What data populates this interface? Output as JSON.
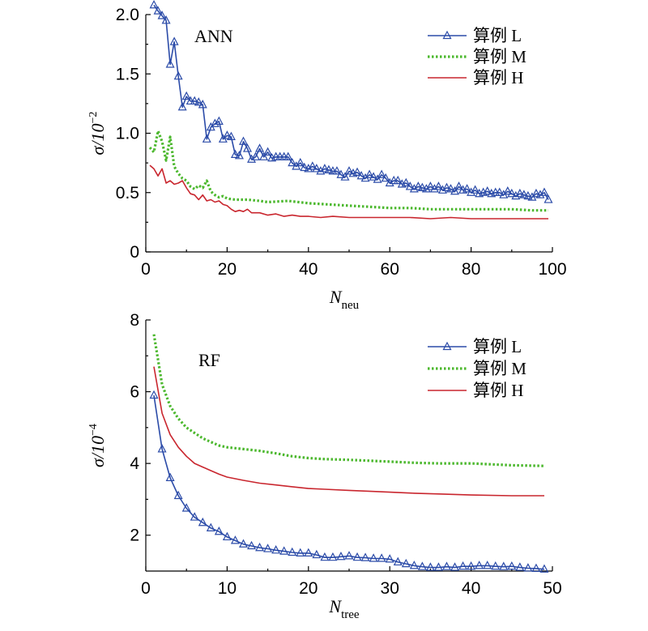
{
  "chart_data": [
    {
      "type": "line",
      "panel_label": "ANN",
      "ylabel_main": "σ/10",
      "ylabel_exp": "−2",
      "xlabel_main": "N",
      "xlabel_sub": "neu",
      "xlim": [
        0,
        100
      ],
      "ylim": [
        0,
        2.0
      ],
      "xticks": [
        "0",
        "20",
        "40",
        "60",
        "80",
        "100"
      ],
      "yticks": [
        "0",
        "0.5",
        "1.0",
        "1.5",
        "2.0"
      ],
      "legend_position": "top-right",
      "series": [
        {
          "name": "算例 L",
          "color": "#2b4ba8",
          "marker": "triangle",
          "x": [
            2,
            3,
            4,
            5,
            6,
            7,
            8,
            9,
            10,
            11,
            12,
            13,
            14,
            15,
            16,
            17,
            18,
            19,
            20,
            21,
            22,
            23,
            24,
            25,
            26,
            27,
            28,
            29,
            30,
            31,
            32,
            33,
            34,
            35,
            36,
            37,
            38,
            39,
            40,
            41,
            42,
            43,
            44,
            45,
            46,
            47,
            48,
            49,
            50,
            51,
            52,
            53,
            54,
            55,
            56,
            57,
            58,
            59,
            60,
            61,
            62,
            63,
            64,
            65,
            66,
            67,
            68,
            69,
            70,
            71,
            72,
            73,
            74,
            75,
            76,
            77,
            78,
            79,
            80,
            81,
            82,
            83,
            84,
            85,
            86,
            87,
            88,
            89,
            90,
            91,
            92,
            93,
            94,
            95,
            96,
            97,
            98,
            99
          ],
          "y": [
            2.08,
            2.03,
            1.99,
            1.95,
            1.58,
            1.77,
            1.48,
            1.22,
            1.31,
            1.27,
            1.27,
            1.26,
            1.24,
            0.95,
            1.05,
            1.08,
            1.1,
            0.95,
            0.98,
            0.97,
            0.82,
            0.81,
            0.93,
            0.87,
            0.78,
            0.8,
            0.87,
            0.8,
            0.84,
            0.79,
            0.8,
            0.8,
            0.8,
            0.8,
            0.75,
            0.72,
            0.75,
            0.71,
            0.7,
            0.72,
            0.7,
            0.68,
            0.7,
            0.69,
            0.68,
            0.68,
            0.65,
            0.63,
            0.68,
            0.66,
            0.67,
            0.64,
            0.62,
            0.65,
            0.63,
            0.61,
            0.65,
            0.62,
            0.58,
            0.6,
            0.6,
            0.57,
            0.58,
            0.55,
            0.53,
            0.55,
            0.54,
            0.53,
            0.55,
            0.53,
            0.55,
            0.52,
            0.54,
            0.53,
            0.51,
            0.55,
            0.52,
            0.53,
            0.5,
            0.52,
            0.49,
            0.5,
            0.51,
            0.49,
            0.5,
            0.5,
            0.48,
            0.51,
            0.49,
            0.47,
            0.49,
            0.48,
            0.47,
            0.46,
            0.49,
            0.48,
            0.5,
            0.44
          ]
        },
        {
          "name": "算例 M",
          "color": "#4cb82e",
          "dash": "dotted",
          "x": [
            1,
            2,
            3,
            4,
            5,
            6,
            7,
            8,
            9,
            10,
            11,
            12,
            13,
            14,
            15,
            16,
            17,
            18,
            19,
            20,
            22,
            25,
            28,
            30,
            35,
            40,
            45,
            50,
            55,
            60,
            65,
            70,
            75,
            80,
            85,
            90,
            95,
            99
          ],
          "y": [
            0.88,
            0.84,
            1.02,
            0.93,
            0.77,
            0.97,
            0.72,
            0.66,
            0.62,
            0.6,
            0.55,
            0.53,
            0.56,
            0.54,
            0.6,
            0.51,
            0.48,
            0.46,
            0.47,
            0.45,
            0.44,
            0.44,
            0.43,
            0.42,
            0.43,
            0.41,
            0.4,
            0.39,
            0.38,
            0.37,
            0.37,
            0.36,
            0.36,
            0.36,
            0.36,
            0.36,
            0.35,
            0.35
          ]
        },
        {
          "name": "算例 H",
          "color": "#c9262e",
          "dash": "solid",
          "x": [
            1,
            2,
            3,
            4,
            5,
            6,
            7,
            8,
            9,
            10,
            11,
            12,
            13,
            14,
            15,
            16,
            17,
            18,
            19,
            20,
            21,
            22,
            23,
            24,
            25,
            26,
            28,
            30,
            32,
            34,
            36,
            38,
            40,
            43,
            46,
            50,
            55,
            60,
            65,
            70,
            75,
            80,
            85,
            90,
            95,
            99
          ],
          "y": [
            0.73,
            0.7,
            0.64,
            0.7,
            0.58,
            0.6,
            0.57,
            0.58,
            0.6,
            0.54,
            0.49,
            0.48,
            0.44,
            0.48,
            0.43,
            0.44,
            0.42,
            0.43,
            0.4,
            0.39,
            0.36,
            0.34,
            0.35,
            0.34,
            0.36,
            0.33,
            0.33,
            0.31,
            0.32,
            0.3,
            0.31,
            0.3,
            0.3,
            0.29,
            0.3,
            0.29,
            0.29,
            0.29,
            0.29,
            0.28,
            0.29,
            0.28,
            0.28,
            0.28,
            0.28,
            0.28
          ]
        }
      ]
    },
    {
      "type": "line",
      "panel_label": "RF",
      "ylabel_main": "σ/10",
      "ylabel_exp": "−4",
      "xlabel_main": "N",
      "xlabel_sub": "tree",
      "xlim": [
        0,
        50
      ],
      "ylim": [
        1.0,
        8.0
      ],
      "xticks": [
        "0",
        "10",
        "20",
        "30",
        "40",
        "50"
      ],
      "yticks": [
        "2",
        "4",
        "6",
        "8"
      ],
      "legend_position": "top-right",
      "series": [
        {
          "name": "算例 L",
          "color": "#2b4ba8",
          "marker": "triangle",
          "x": [
            1,
            2,
            3,
            4,
            5,
            6,
            7,
            8,
            9,
            10,
            11,
            12,
            13,
            14,
            15,
            16,
            17,
            18,
            19,
            20,
            21,
            22,
            23,
            24,
            25,
            26,
            27,
            28,
            29,
            30,
            31,
            32,
            33,
            34,
            35,
            36,
            37,
            38,
            39,
            40,
            41,
            42,
            43,
            44,
            45,
            46,
            47,
            48,
            49
          ],
          "y": [
            5.9,
            4.4,
            3.6,
            3.1,
            2.75,
            2.5,
            2.35,
            2.2,
            2.1,
            1.95,
            1.85,
            1.75,
            1.7,
            1.65,
            1.62,
            1.58,
            1.55,
            1.52,
            1.5,
            1.5,
            1.45,
            1.38,
            1.38,
            1.4,
            1.42,
            1.38,
            1.37,
            1.35,
            1.35,
            1.33,
            1.25,
            1.2,
            1.15,
            1.12,
            1.1,
            1.1,
            1.12,
            1.1,
            1.13,
            1.13,
            1.15,
            1.15,
            1.13,
            1.12,
            1.13,
            1.1,
            1.08,
            1.07,
            1.05
          ]
        },
        {
          "name": "算例 M",
          "color": "#4cb82e",
          "dash": "dotted",
          "x": [
            1,
            2,
            3,
            4,
            5,
            6,
            7,
            8,
            9,
            10,
            12,
            14,
            16,
            18,
            20,
            22,
            25,
            28,
            30,
            33,
            36,
            40,
            45,
            49
          ],
          "y": [
            7.6,
            6.2,
            5.6,
            5.25,
            5.0,
            4.85,
            4.7,
            4.6,
            4.5,
            4.45,
            4.4,
            4.35,
            4.28,
            4.2,
            4.15,
            4.12,
            4.1,
            4.07,
            4.05,
            4.02,
            4.0,
            4.0,
            3.95,
            3.93
          ]
        },
        {
          "name": "算例 H",
          "color": "#c9262e",
          "dash": "solid",
          "x": [
            1,
            2,
            3,
            4,
            5,
            6,
            7,
            8,
            9,
            10,
            12,
            14,
            16,
            18,
            20,
            22,
            25,
            28,
            30,
            33,
            36,
            40,
            45,
            49
          ],
          "y": [
            6.7,
            5.4,
            4.8,
            4.45,
            4.2,
            4.0,
            3.9,
            3.8,
            3.7,
            3.62,
            3.53,
            3.45,
            3.4,
            3.35,
            3.3,
            3.28,
            3.25,
            3.22,
            3.2,
            3.17,
            3.15,
            3.12,
            3.1,
            3.1
          ]
        }
      ]
    }
  ]
}
